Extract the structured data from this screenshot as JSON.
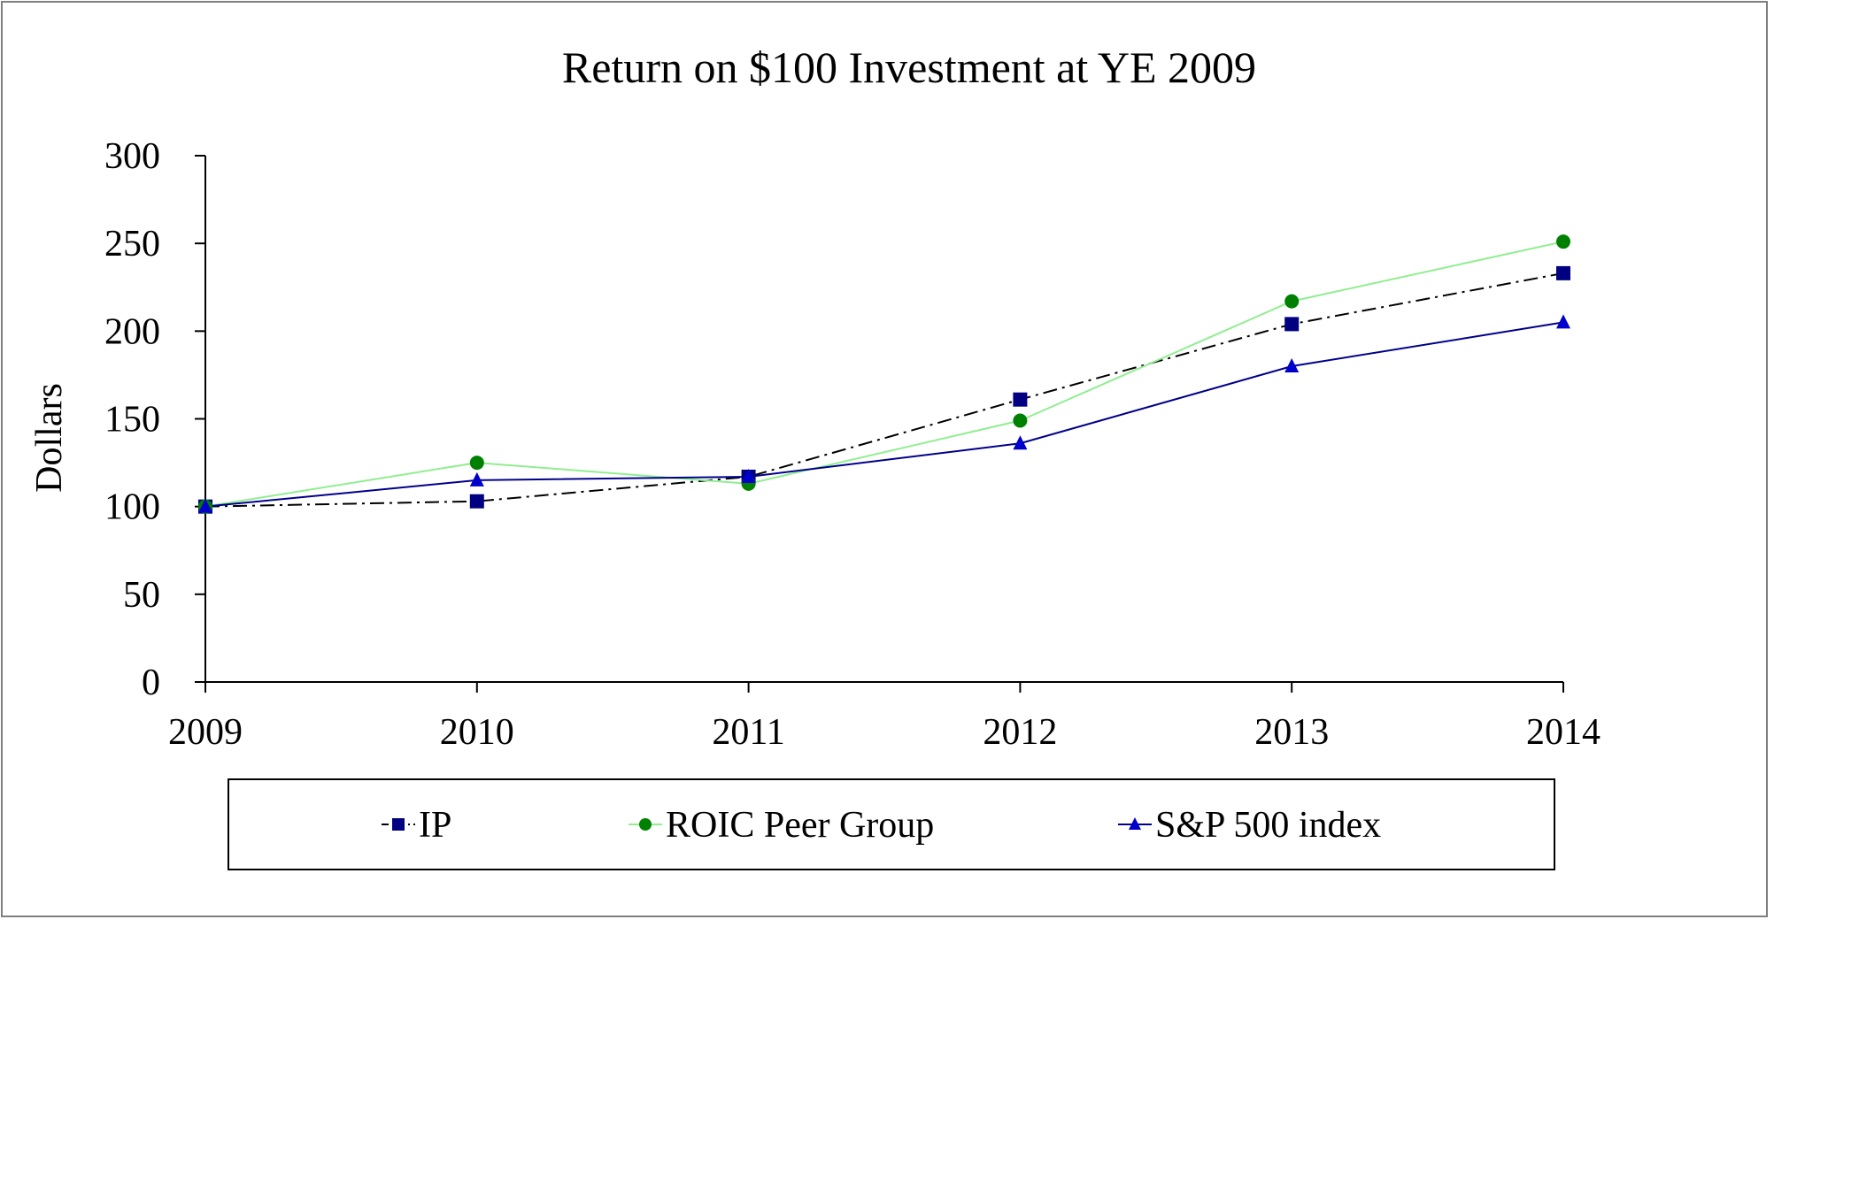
{
  "chart_data": {
    "type": "line",
    "title": "Return on $100 Investment at YE 2009",
    "xlabel": "",
    "ylabel": "Dollars",
    "categories": [
      "2009",
      "2010",
      "2011",
      "2012",
      "2013",
      "2014"
    ],
    "ylim": [
      0,
      300
    ],
    "yticks": [
      "0",
      "50",
      "100",
      "150",
      "200",
      "250",
      "300"
    ],
    "grid": false,
    "legend_position": "bottom",
    "series": [
      {
        "name": "IP",
        "values": [
          100,
          103,
          117,
          161,
          204,
          233
        ],
        "color": "#000080",
        "line_color": "#000000",
        "line_style": "dash-dot",
        "marker": "square"
      },
      {
        "name": "ROIC Peer Group",
        "values": [
          100,
          125,
          113,
          149,
          217,
          251
        ],
        "color": "#008000",
        "line_color": "#90ee90",
        "line_style": "solid",
        "marker": "circle"
      },
      {
        "name": "S&P 500 index",
        "values": [
          100,
          115,
          117,
          136,
          180,
          205
        ],
        "color": "#0000cd",
        "line_color": "#00008b",
        "line_style": "solid",
        "marker": "triangle"
      }
    ]
  }
}
